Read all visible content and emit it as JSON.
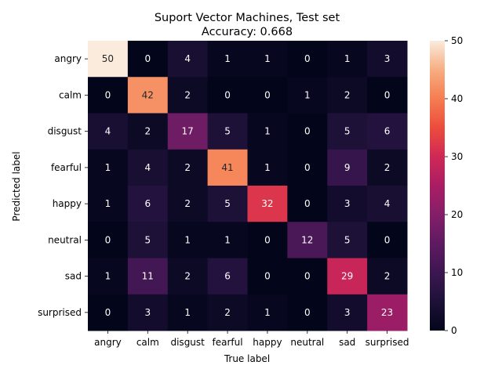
{
  "chart_data": {
    "type": "heatmap",
    "title": "Suport Vector Machines, Test set",
    "subtitle": "Accuracy: 0.668",
    "xlabel": "True label",
    "ylabel": "Predicted label",
    "x_categories": [
      "angry",
      "calm",
      "disgust",
      "fearful",
      "happy",
      "neutral",
      "sad",
      "surprised"
    ],
    "y_categories": [
      "angry",
      "calm",
      "disgust",
      "fearful",
      "happy",
      "neutral",
      "sad",
      "surprised"
    ],
    "values": [
      [
        50,
        0,
        4,
        1,
        1,
        0,
        1,
        3
      ],
      [
        0,
        42,
        2,
        0,
        0,
        1,
        2,
        0
      ],
      [
        4,
        2,
        17,
        5,
        1,
        0,
        5,
        6
      ],
      [
        1,
        4,
        2,
        41,
        1,
        0,
        9,
        2
      ],
      [
        1,
        6,
        2,
        5,
        32,
        0,
        3,
        4
      ],
      [
        0,
        5,
        1,
        1,
        0,
        12,
        5,
        0
      ],
      [
        1,
        11,
        2,
        6,
        0,
        0,
        29,
        2
      ],
      [
        0,
        3,
        1,
        2,
        1,
        0,
        3,
        23
      ]
    ],
    "colorbar": {
      "range": [
        0,
        50
      ],
      "ticks": [
        0,
        10,
        20,
        30,
        40,
        50
      ],
      "colormap": "rocket"
    },
    "annotated": true,
    "grid": false
  }
}
